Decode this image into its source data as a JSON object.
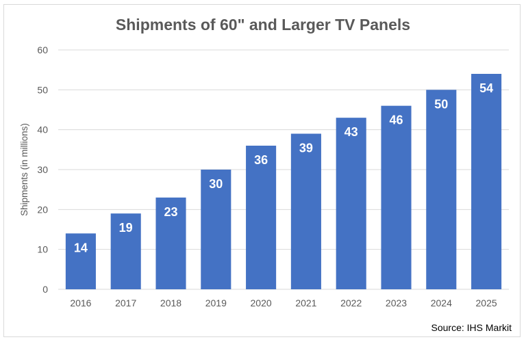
{
  "chart_data": {
    "type": "bar",
    "title": "Shipments of 60\" and Larger TV Panels",
    "xlabel": "",
    "ylabel": "Shipments (in millions)",
    "categories": [
      "2016",
      "2017",
      "2018",
      "2019",
      "2020",
      "2021",
      "2022",
      "2023",
      "2024",
      "2025"
    ],
    "values": [
      14,
      19,
      23,
      30,
      36,
      39,
      43,
      46,
      50,
      54
    ],
    "ylim": [
      0,
      60
    ],
    "yticks": [
      0,
      10,
      20,
      30,
      40,
      50,
      60
    ],
    "grid": true,
    "legend": "none",
    "data_labels": "inside-end",
    "bar_color": "#4472c4",
    "annotation": "Source: IHS Markit"
  }
}
